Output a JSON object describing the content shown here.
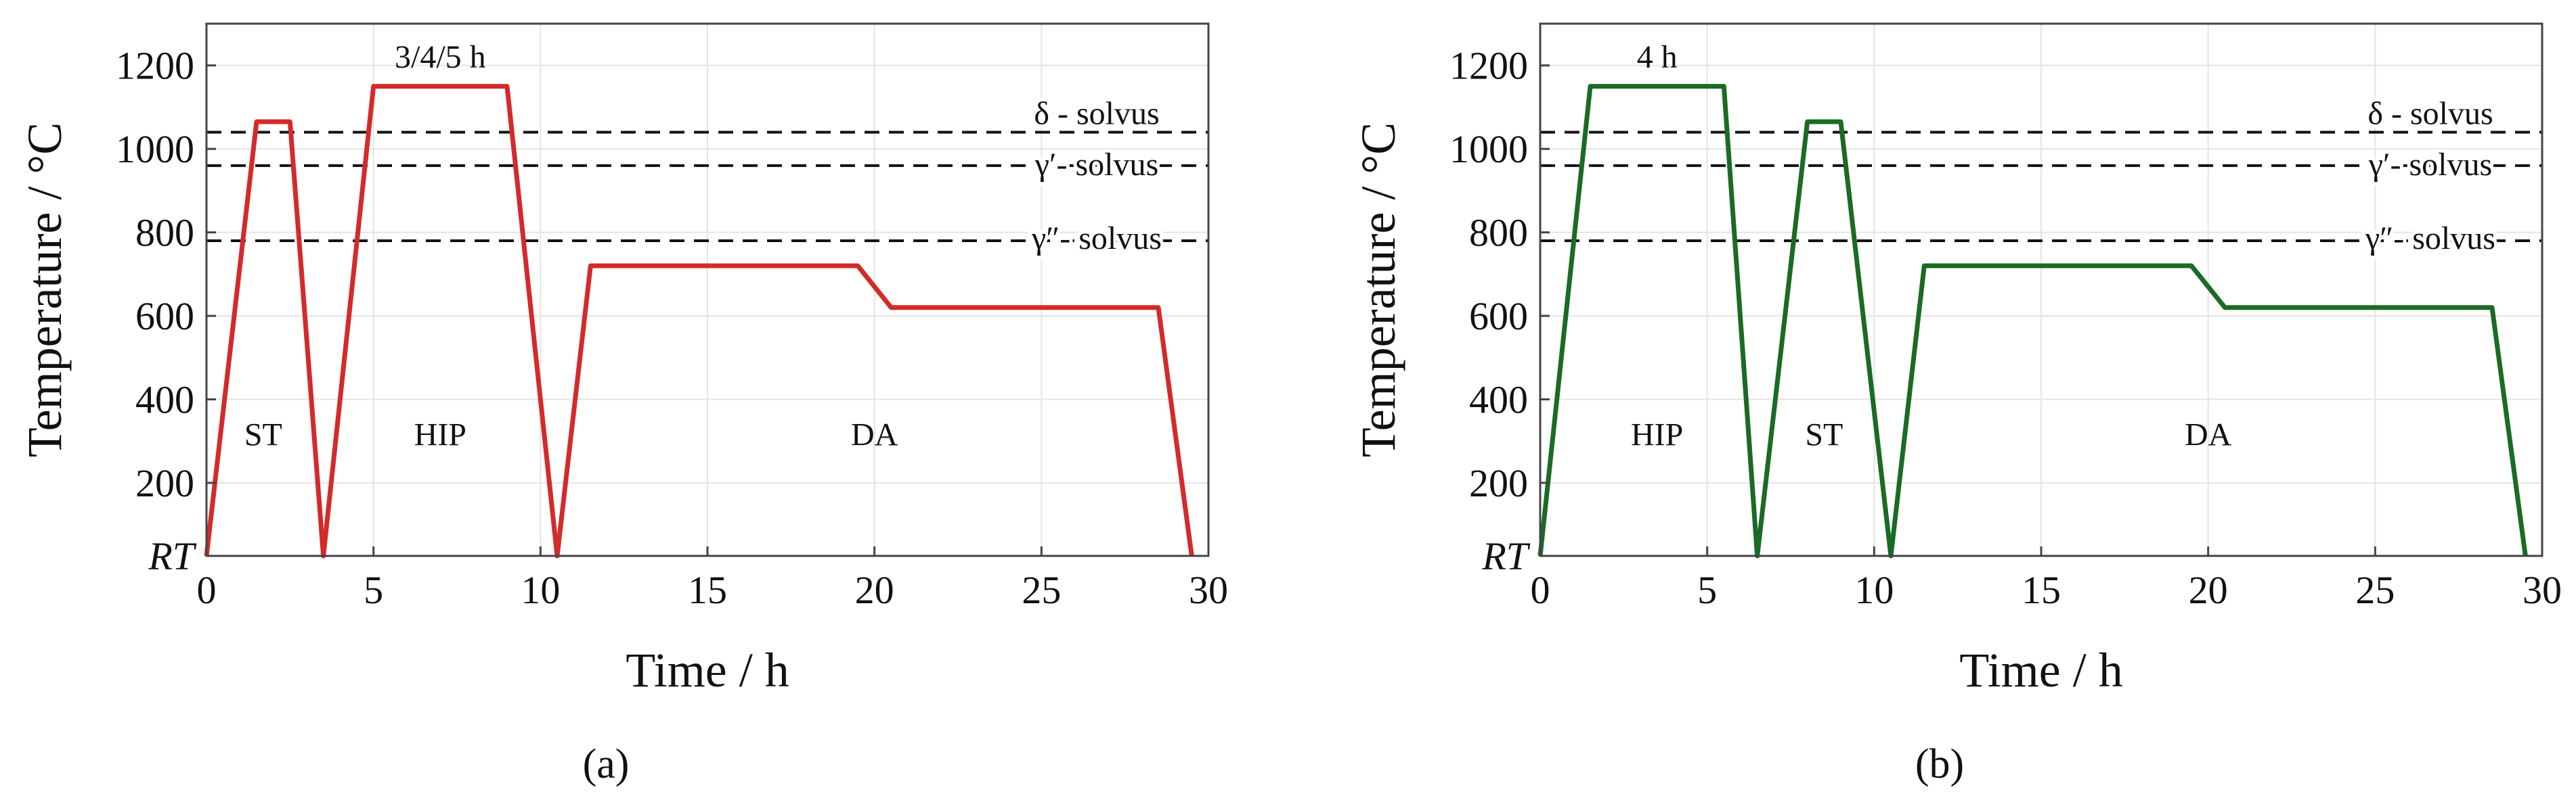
{
  "chart_data": [
    {
      "type": "line",
      "panel_caption": "(a)",
      "color": "#d42a2a",
      "xlabel": "Time / h",
      "ylabel": "Temperature / °C",
      "xlim": [
        0,
        30
      ],
      "ylim": [
        25,
        1300
      ],
      "x_ticks": [
        0,
        5,
        10,
        15,
        20,
        25,
        30
      ],
      "y_ticks": [
        {
          "value": 25,
          "label": "RT"
        },
        {
          "value": 200,
          "label": "200"
        },
        {
          "value": 400,
          "label": "400"
        },
        {
          "value": 600,
          "label": "600"
        },
        {
          "value": 800,
          "label": "800"
        },
        {
          "value": 1000,
          "label": "1000"
        },
        {
          "value": 1200,
          "label": "1200"
        }
      ],
      "series": [
        {
          "name": "heat treatment",
          "x": [
            0,
            1.5,
            2.5,
            3.5,
            5,
            9,
            10.5,
            11.5,
            19.5,
            20.5,
            28.5,
            29.5
          ],
          "y": [
            25,
            1065,
            1065,
            25,
            1150,
            1150,
            25,
            720,
            720,
            620,
            620,
            25
          ]
        }
      ],
      "solvus_lines": [
        {
          "label": "δ - solvus",
          "value": 1040
        },
        {
          "label": "γ′- solvus",
          "value": 960
        },
        {
          "label": "γ″- solvus",
          "value": 780
        }
      ],
      "annotations": [
        {
          "text": "ST",
          "x": 1.7,
          "y": 290
        },
        {
          "text": "HIP",
          "x": 7.0,
          "y": 290
        },
        {
          "text": "DA",
          "x": 20.0,
          "y": 290
        },
        {
          "text": "3/4/5 h",
          "x": 7.0,
          "y": 1195
        }
      ]
    },
    {
      "type": "line",
      "panel_caption": "(b)",
      "color": "#1a6b24",
      "xlabel": "Time / h",
      "ylabel": "Temperature / °C",
      "xlim": [
        0,
        30
      ],
      "ylim": [
        25,
        1300
      ],
      "x_ticks": [
        0,
        5,
        10,
        15,
        20,
        25,
        30
      ],
      "y_ticks": [
        {
          "value": 25,
          "label": "RT"
        },
        {
          "value": 200,
          "label": "200"
        },
        {
          "value": 400,
          "label": "400"
        },
        {
          "value": 600,
          "label": "600"
        },
        {
          "value": 800,
          "label": "800"
        },
        {
          "value": 1000,
          "label": "1000"
        },
        {
          "value": 1200,
          "label": "1200"
        }
      ],
      "series": [
        {
          "name": "heat treatment",
          "x": [
            0,
            1.5,
            5.5,
            6.5,
            8,
            9,
            10.5,
            11.5,
            19.5,
            20.5,
            28.5,
            29.5
          ],
          "y": [
            25,
            1150,
            1150,
            25,
            1065,
            1065,
            25,
            720,
            720,
            620,
            620,
            25
          ]
        }
      ],
      "solvus_lines": [
        {
          "label": "δ - solvus",
          "value": 1040
        },
        {
          "label": "γ′- solvus",
          "value": 960
        },
        {
          "label": "γ″- solvus",
          "value": 780
        }
      ],
      "annotations": [
        {
          "text": "HIP",
          "x": 3.5,
          "y": 290
        },
        {
          "text": "ST",
          "x": 8.5,
          "y": 290
        },
        {
          "text": "DA",
          "x": 20.0,
          "y": 290
        },
        {
          "text": "4 h",
          "x": 3.5,
          "y": 1195
        }
      ]
    }
  ]
}
